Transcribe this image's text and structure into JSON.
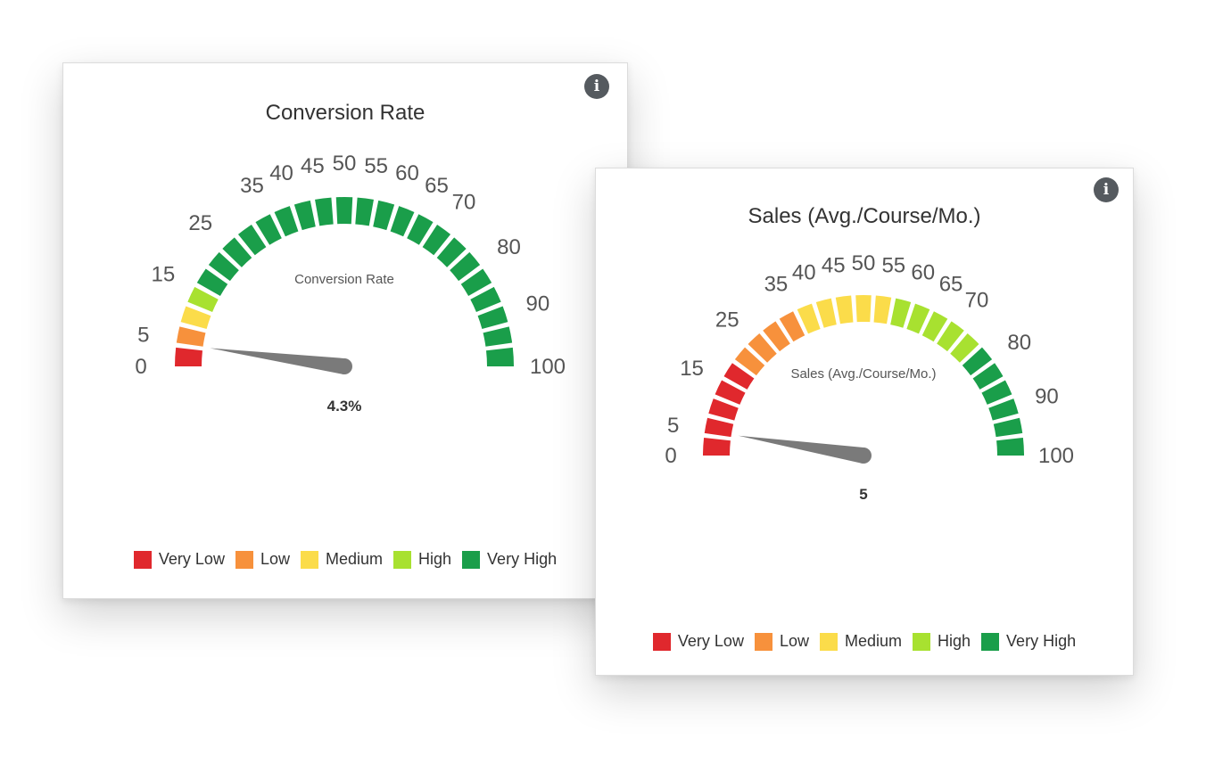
{
  "chart_data": [
    {
      "type": "gauge",
      "title": "Conversion Rate",
      "center_label": "Conversion Rate",
      "value": 4.3,
      "value_label": "4.3%",
      "range": [
        0,
        100
      ],
      "tick_labels": [
        "0",
        "5",
        "15",
        "25",
        "35",
        "40",
        "45",
        "50",
        "55",
        "60",
        "65",
        "70",
        "80",
        "90",
        "100"
      ],
      "tick_values": [
        0,
        5,
        15,
        25,
        35,
        40,
        45,
        50,
        55,
        60,
        65,
        70,
        80,
        90,
        100
      ],
      "segment_colors": [
        "#e0282d",
        "#f7913c",
        "#fbdc4a",
        "#a8e130",
        "#1a9e4a",
        "#1a9e4a",
        "#1a9e4a",
        "#1a9e4a",
        "#1a9e4a",
        "#1a9e4a",
        "#1a9e4a",
        "#1a9e4a",
        "#1a9e4a",
        "#1a9e4a",
        "#1a9e4a",
        "#1a9e4a",
        "#1a9e4a",
        "#1a9e4a",
        "#1a9e4a",
        "#1a9e4a",
        "#1a9e4a",
        "#1a9e4a",
        "#1a9e4a",
        "#1a9e4a",
        "#1a9e4a"
      ],
      "legend": [
        {
          "label": "Very Low",
          "color": "#e0282d"
        },
        {
          "label": "Low",
          "color": "#f7913c"
        },
        {
          "label": "Medium",
          "color": "#fbdc4a"
        },
        {
          "label": "High",
          "color": "#a8e130"
        },
        {
          "label": "Very High",
          "color": "#1a9e4a"
        }
      ]
    },
    {
      "type": "gauge",
      "title": "Sales (Avg./Course/Mo.)",
      "center_label": "Sales (Avg./Course/Mo.)",
      "value": 5,
      "value_label": "5",
      "range": [
        0,
        100
      ],
      "tick_labels": [
        "0",
        "5",
        "15",
        "25",
        "35",
        "40",
        "45",
        "50",
        "55",
        "60",
        "65",
        "70",
        "80",
        "90",
        "100"
      ],
      "tick_values": [
        0,
        5,
        15,
        25,
        35,
        40,
        45,
        50,
        55,
        60,
        65,
        70,
        80,
        90,
        100
      ],
      "segment_colors": [
        "#e0282d",
        "#e0282d",
        "#e0282d",
        "#e0282d",
        "#e0282d",
        "#f7913c",
        "#f7913c",
        "#f7913c",
        "#f7913c",
        "#fbdc4a",
        "#fbdc4a",
        "#fbdc4a",
        "#fbdc4a",
        "#fbdc4a",
        "#a8e130",
        "#a8e130",
        "#a8e130",
        "#a8e130",
        "#a8e130",
        "#1a9e4a",
        "#1a9e4a",
        "#1a9e4a",
        "#1a9e4a",
        "#1a9e4a",
        "#1a9e4a"
      ],
      "legend": [
        {
          "label": "Very Low",
          "color": "#e0282d"
        },
        {
          "label": "Low",
          "color": "#f7913c"
        },
        {
          "label": "Medium",
          "color": "#fbdc4a"
        },
        {
          "label": "High",
          "color": "#a8e130"
        },
        {
          "label": "Very High",
          "color": "#1a9e4a"
        }
      ]
    }
  ],
  "icons": {
    "info": "info-icon",
    "info_glyph": "i"
  }
}
